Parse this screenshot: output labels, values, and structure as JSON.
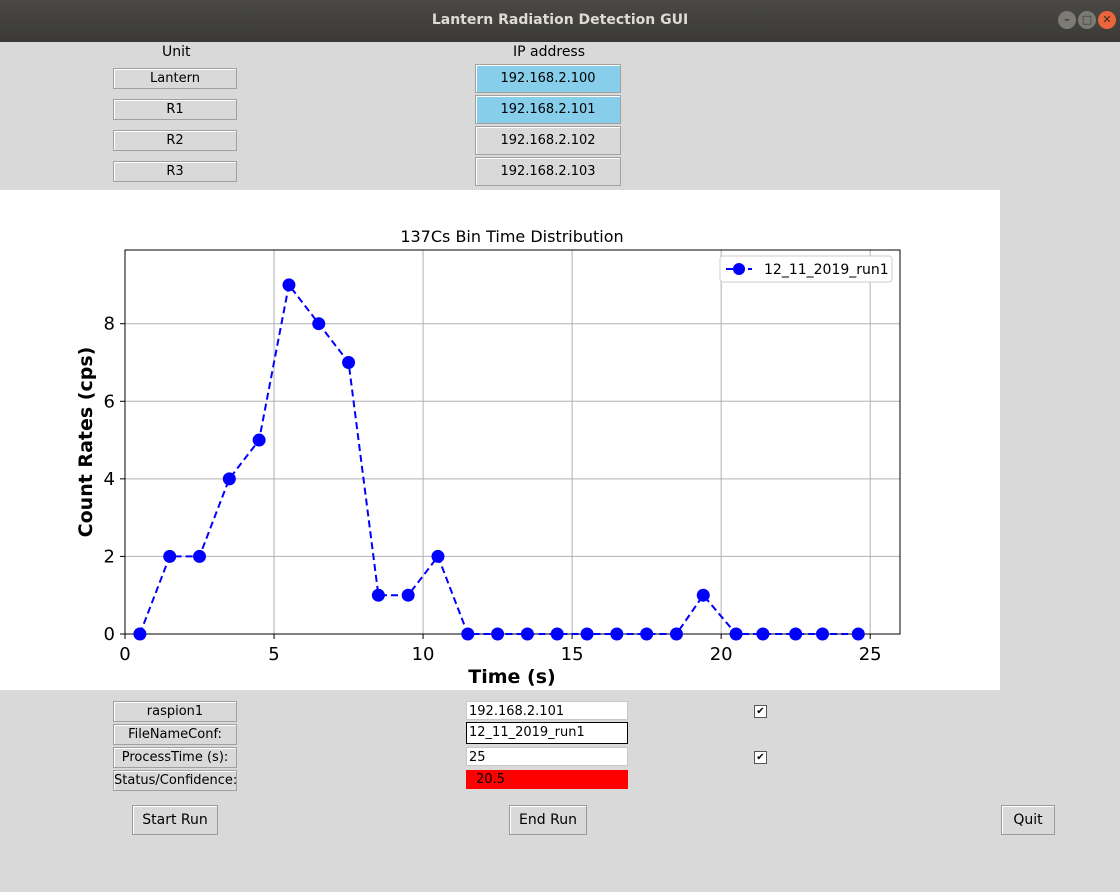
{
  "window": {
    "title": "Lantern Radiation Detection GUI"
  },
  "table": {
    "unit_header": "Unit",
    "ip_header": "IP address",
    "rows": [
      {
        "unit": "Lantern",
        "ip": "192.168.2.100",
        "highlighted": true
      },
      {
        "unit": "R1",
        "ip": "192.168.2.101",
        "highlighted": true
      },
      {
        "unit": "R2",
        "ip": "192.168.2.102",
        "highlighted": false
      },
      {
        "unit": "R3",
        "ip": "192.168.2.103",
        "highlighted": false
      }
    ]
  },
  "chart_data": {
    "type": "line",
    "title": "137Cs Bin Time Distribution",
    "xlabel": "Time (s)",
    "ylabel": "Count Rates (cps)",
    "xlim": [
      0,
      26
    ],
    "ylim": [
      0,
      9.9
    ],
    "xticks": [
      0,
      5,
      10,
      15,
      20,
      25
    ],
    "yticks": [
      0,
      2,
      4,
      6,
      8
    ],
    "grid": true,
    "legend_position": "top-right",
    "series": [
      {
        "name": "12_11_2019_run1",
        "color": "#0000ff",
        "line_style": "dashed",
        "marker": "circle",
        "x": [
          0.5,
          1.5,
          2.5,
          3.5,
          4.5,
          5.5,
          6.5,
          7.5,
          8.5,
          9.5,
          10.5,
          11.5,
          12.5,
          13.5,
          14.5,
          15.5,
          16.5,
          17.5,
          18.5,
          19.4,
          20.5,
          21.4,
          22.5,
          23.4,
          24.6
        ],
        "y": [
          0,
          2,
          2,
          4,
          5,
          9,
          8,
          7,
          1,
          1,
          2,
          0,
          0,
          0,
          0,
          0,
          0,
          0,
          0,
          1,
          0,
          0,
          0,
          0,
          0
        ]
      }
    ]
  },
  "controls": {
    "device_label": "raspion1",
    "device_ip": "192.168.2.101",
    "device_checked": true,
    "filename_label": "FileNameConf:",
    "filename_value": "12_11_2019_run1",
    "process_label": "ProcessTime (s):",
    "process_value": "25",
    "process_checked": true,
    "status_label": "Status/Confidence:",
    "status_value": "20.5",
    "status_color": "#ff0000"
  },
  "buttons": {
    "start": "Start Run",
    "end": "End Run",
    "quit": "Quit"
  }
}
